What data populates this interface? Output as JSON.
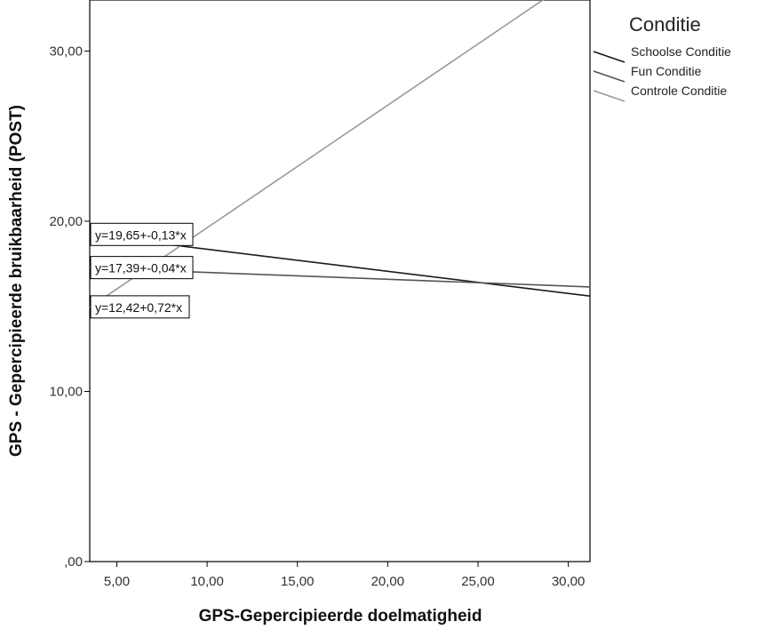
{
  "chart_data": {
    "type": "line",
    "xlabel": "GPS-Gepercipieerde doelmatigheid",
    "ylabel": "GPS - Gepercipieerde bruikbaarheid (POST)",
    "xlim": [
      3.5,
      31.2
    ],
    "ylim": [
      0,
      33
    ],
    "x_ticks": [
      5,
      10,
      15,
      20,
      25,
      30
    ],
    "x_tick_labels": [
      "5,00",
      "10,00",
      "15,00",
      "20,00",
      "25,00",
      "30,00"
    ],
    "y_ticks": [
      0,
      10,
      20,
      30
    ],
    "y_tick_labels": [
      ",00",
      "10,00",
      "20,00",
      "30,00"
    ],
    "grid": false,
    "legend": {
      "title": "Conditie",
      "position": "top-right",
      "entries": [
        "Schoolse Conditie",
        "Fun Conditie",
        "Controle Conditie"
      ]
    },
    "series": [
      {
        "name": "Schoolse Conditie",
        "color": "#1a1a1a",
        "intercept": 19.65,
        "slope": -0.13,
        "x": [
          3.5,
          31.2
        ],
        "y": [
          19.2,
          15.6
        ],
        "equation": "y=19,65+-0,13*x"
      },
      {
        "name": "Fun Conditie",
        "color": "#555555",
        "intercept": 17.39,
        "slope": -0.04,
        "x": [
          3.5,
          31.2
        ],
        "y": [
          17.25,
          16.14
        ],
        "equation": "y=17,39+-0,04*x"
      },
      {
        "name": "Controle Conditie",
        "color": "#9a9a9a",
        "intercept": 12.42,
        "slope": 0.72,
        "x": [
          3.5,
          31.2
        ],
        "y": [
          14.94,
          34.88
        ],
        "equation": "y=12,42+0,72*x"
      }
    ]
  }
}
